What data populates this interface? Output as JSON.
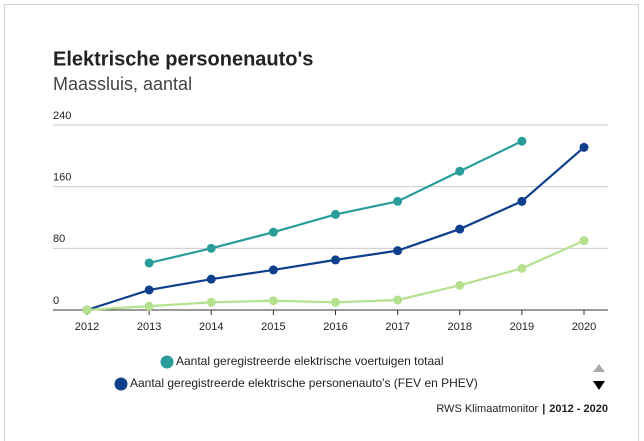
{
  "chart_data": {
    "type": "line",
    "title": "Elektrische personenauto's",
    "subtitle": "Maassluis, aantal",
    "x": [
      2012,
      2013,
      2014,
      2015,
      2016,
      2017,
      2018,
      2019,
      2020
    ],
    "xlim": [
      2012,
      2020
    ],
    "series": [
      {
        "name": "Aantal geregistreerde elektrische voertuigen totaal",
        "color": "#2a9d9a",
        "values": [
          null,
          61,
          80,
          101,
          124,
          141,
          180,
          219,
          null
        ]
      },
      {
        "name": "Aantal geregistreerde elektrische personenauto's (FEV en PHEV)",
        "color": "#0e3f8c",
        "values": [
          0,
          26,
          40,
          52,
          65,
          77,
          105,
          141,
          211
        ]
      },
      {
        "color": "#b5e08e",
        "values": [
          0,
          5,
          10,
          12,
          10,
          13,
          32,
          54,
          90
        ]
      }
    ],
    "ylim": [
      0,
      240
    ],
    "yticks": [
      0,
      80,
      160,
      240
    ],
    "grid": true,
    "source": "RWS Klimaatmonitor",
    "source_period": "2012 - 2020"
  }
}
